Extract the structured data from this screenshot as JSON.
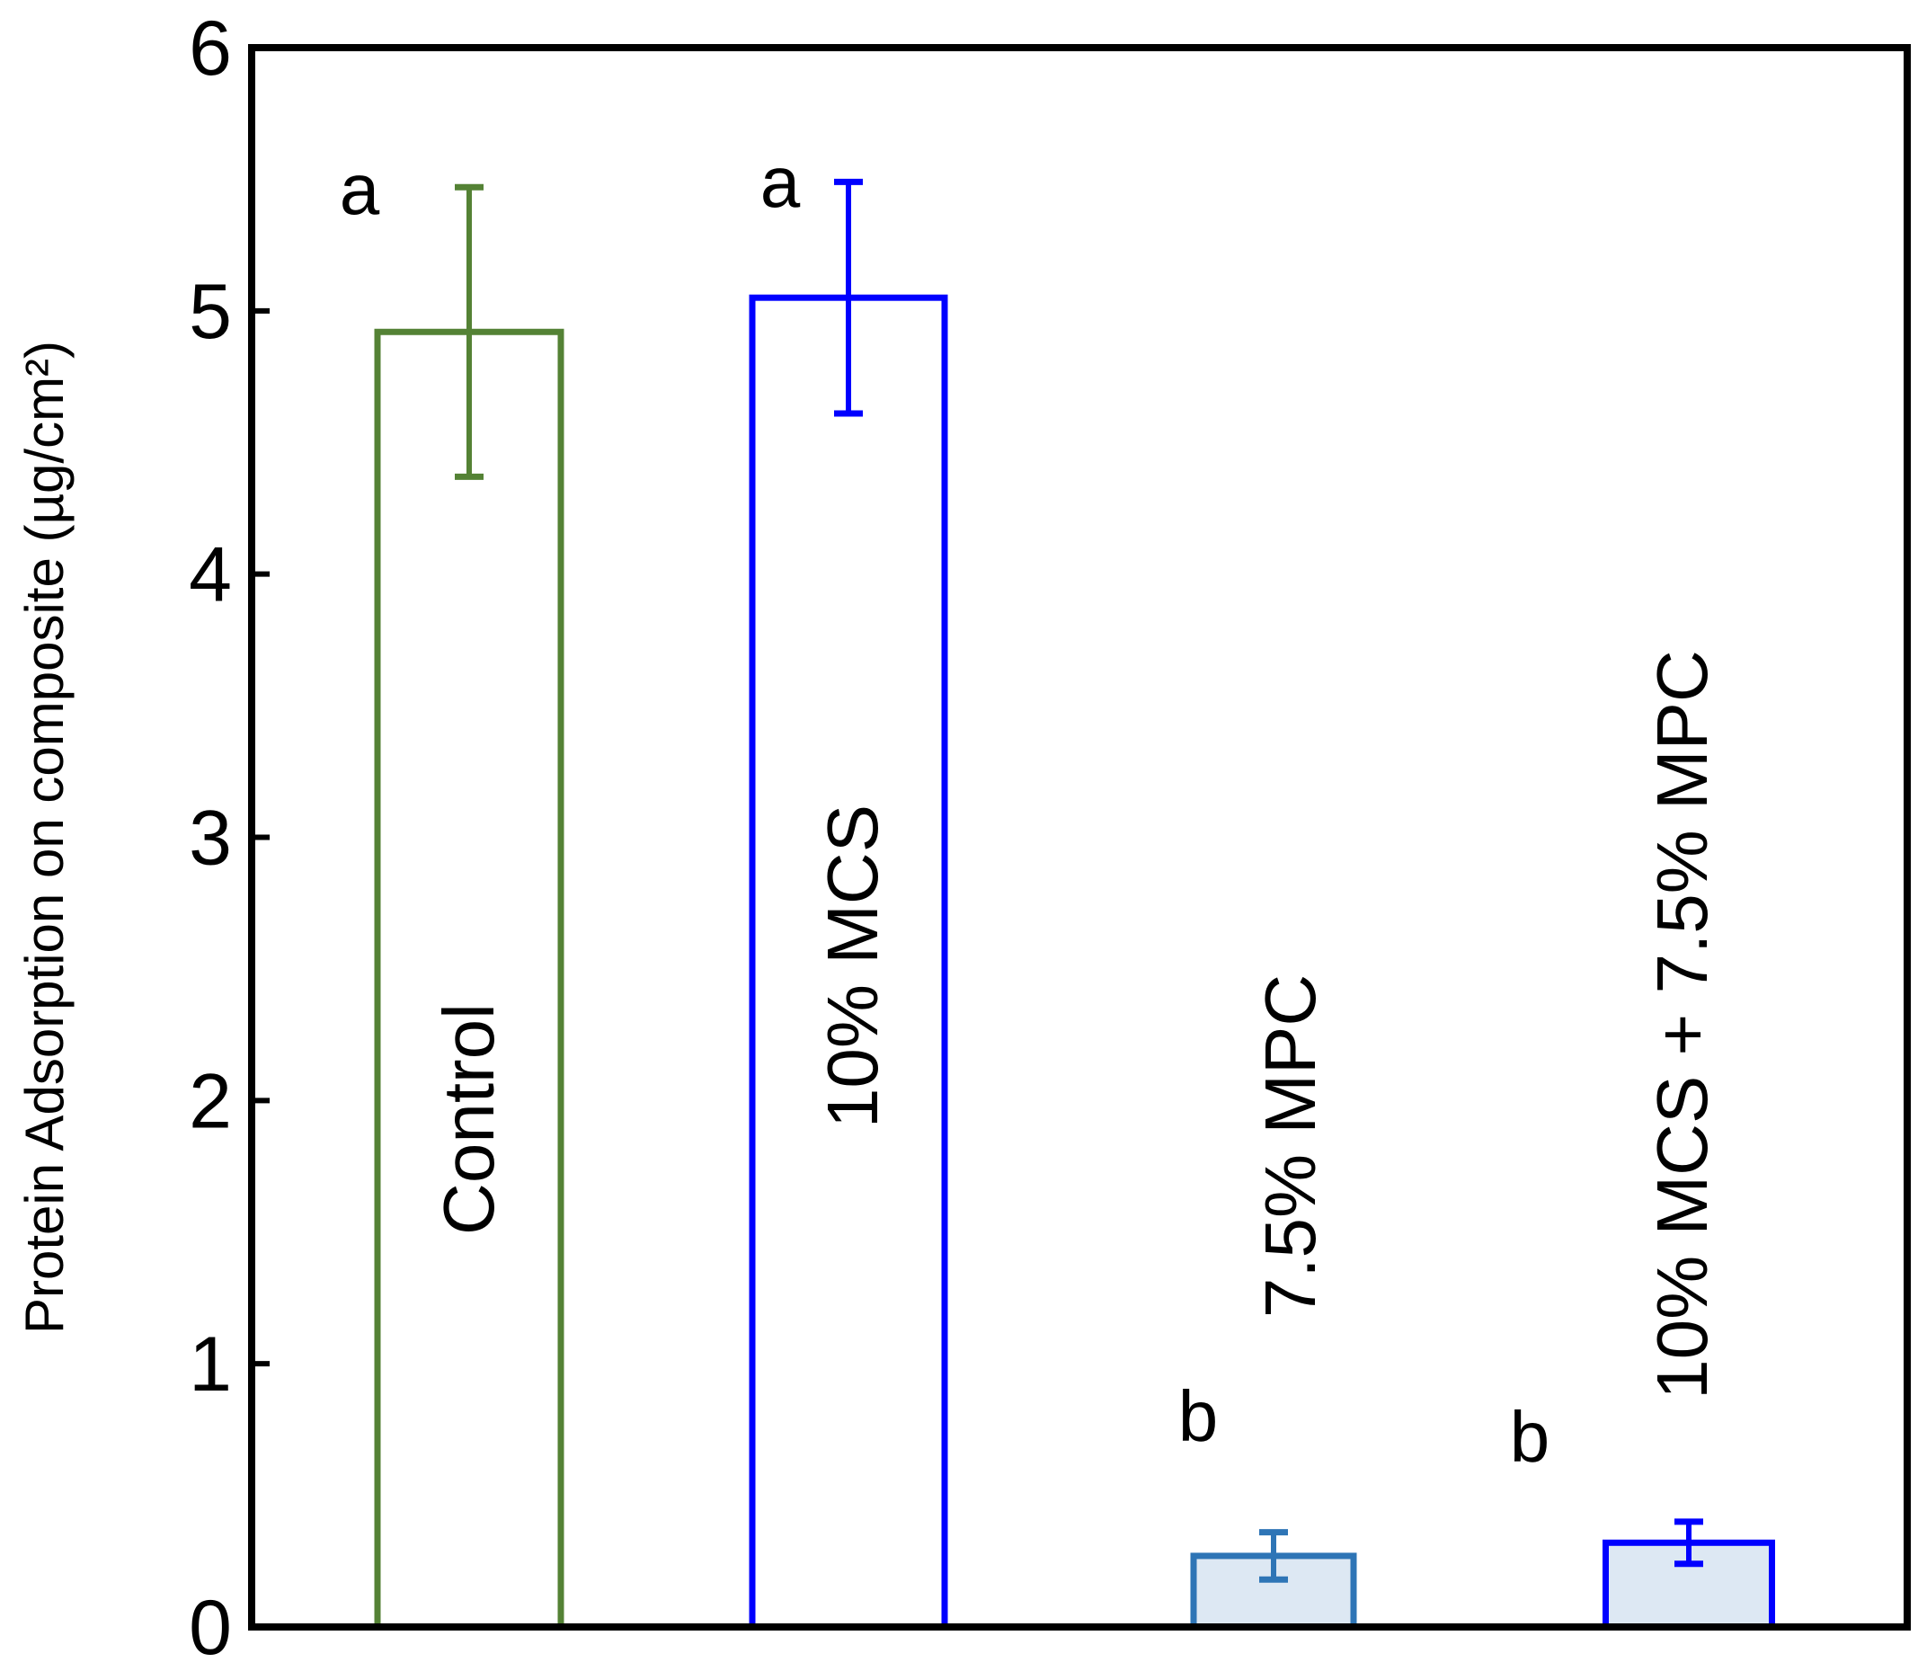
{
  "chart_data": {
    "type": "bar",
    "title": "",
    "xlabel": "",
    "ylabel": "Protein Adsorption on composite (µg/cm²)",
    "ylim": [
      0,
      6
    ],
    "yticks": [
      "0",
      "1",
      "2",
      "3",
      "4",
      "5",
      "6"
    ],
    "grid": false,
    "legend": "none",
    "categories": [
      "Control",
      "10% MCS",
      "7.5% MPC",
      "10% MCS + 7.5% MPC"
    ],
    "values": [
      4.92,
      5.05,
      0.27,
      0.32
    ],
    "errors": [
      0.55,
      0.44,
      0.09,
      0.08
    ],
    "significance": [
      "a",
      "a",
      "b",
      "b"
    ],
    "colors": {
      "edges": [
        "#548235",
        "#0000ff",
        "#2e75b6",
        "#0000ff"
      ],
      "fills": [
        "#ffffff",
        "#ffffff",
        "#dde8f3",
        "#dde8f3"
      ],
      "axis": "#000000"
    }
  }
}
